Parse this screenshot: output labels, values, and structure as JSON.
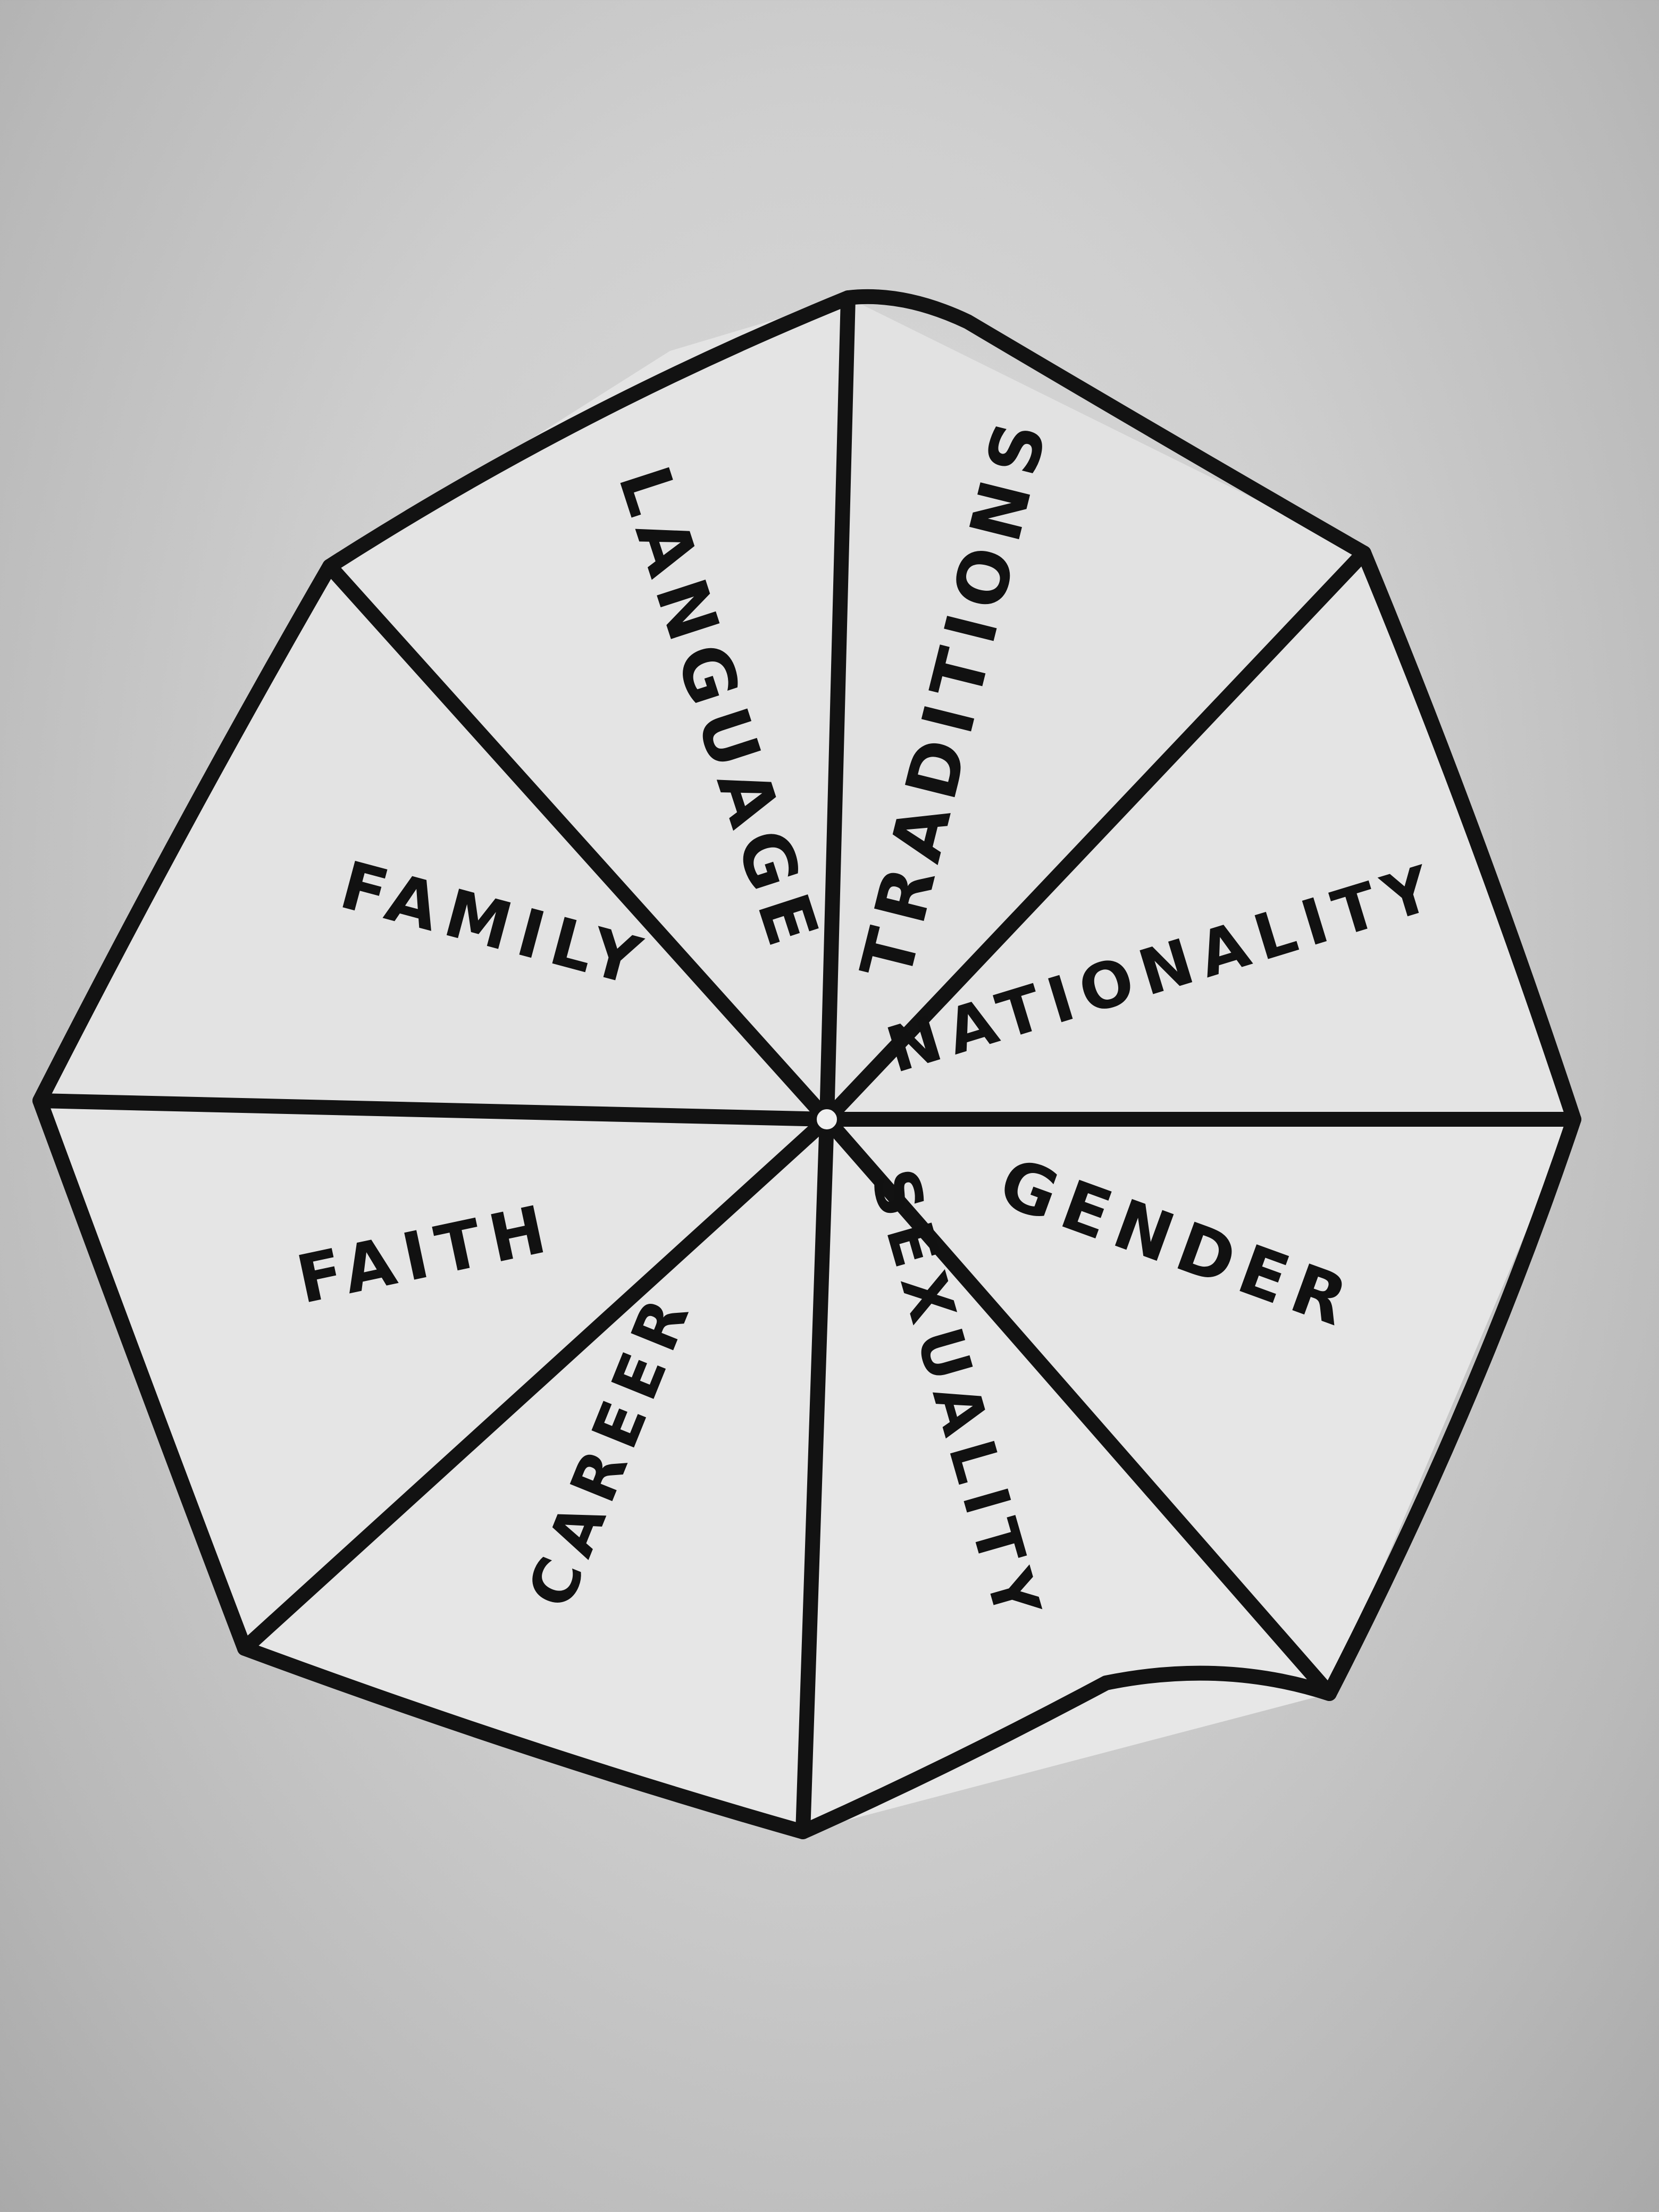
{
  "diagram": {
    "style": "hand-drawn umbrella / wheel diagram, black ink on white paper, grayscale photo",
    "segments": [
      {
        "label": "LANGUAGE"
      },
      {
        "label": "TRADITIONS"
      },
      {
        "label": "NATIONALITY"
      },
      {
        "label": "GENDER"
      },
      {
        "label": "SEXUALITY"
      },
      {
        "label": "CAREER"
      },
      {
        "label": "FAITH"
      },
      {
        "label": "FAMILY"
      }
    ]
  },
  "colors": {
    "ink": "#111111",
    "paper": "#d8d8d8",
    "wedge_fill": "#e6e6e6"
  }
}
